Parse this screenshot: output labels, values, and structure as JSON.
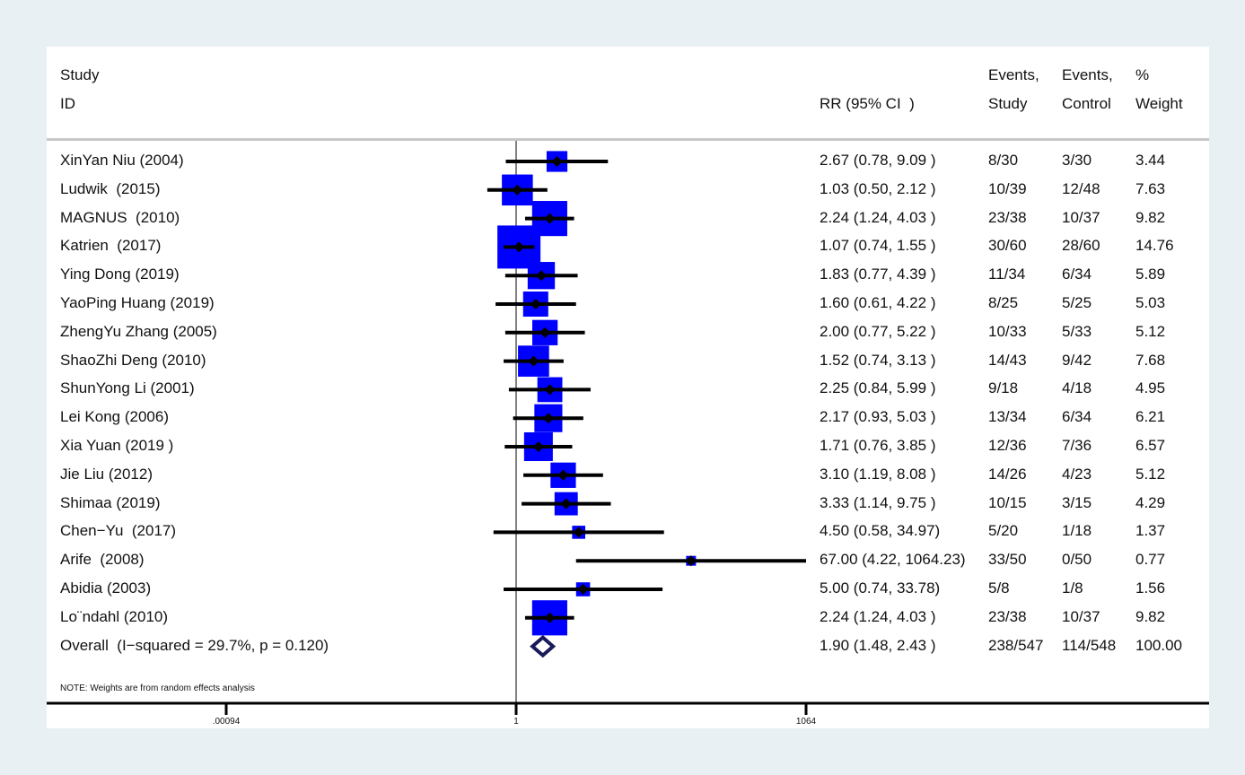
{
  "headers": {
    "study": "Study",
    "id": "ID",
    "rr": "RR (95% CI  )",
    "events1_top": "Events,",
    "events1_bottom": "Study",
    "events2_top": "Events,",
    "events2_bottom": "Control",
    "weight_top": "%",
    "weight_bottom": "Weight"
  },
  "note": "NOTE: Weights are from random effects analysis",
  "colors": {
    "box": "#0000ff",
    "line": "#000000",
    "diamond": "#1a1a5a",
    "nullline": "#808080",
    "background": "#e9f0f3"
  },
  "chart_data": {
    "type": "forest",
    "xscale": "log",
    "xlim": [
      0.00094,
      1064
    ],
    "null_value": 1,
    "xticks": [
      {
        "value": 0.00094,
        "label": ".00094"
      },
      {
        "value": 1,
        "label": "1"
      },
      {
        "value": 1064,
        "label": "1064"
      }
    ],
    "studies": [
      {
        "name": "XinYan Niu (2004)",
        "rr": 2.67,
        "lo": 0.78,
        "hi": 9.09,
        "ci_text": "2.67 (0.78, 9.09 )",
        "ev_study": "8/30",
        "ev_control": "3/30",
        "weight": 3.44,
        "weight_text": "3.44"
      },
      {
        "name": "Ludwik  (2015)",
        "rr": 1.03,
        "lo": 0.5,
        "hi": 2.12,
        "ci_text": "1.03 (0.50, 2.12 )",
        "ev_study": "10/39",
        "ev_control": "12/48",
        "weight": 7.63,
        "weight_text": "7.63"
      },
      {
        "name": "MAGNUS  (2010)",
        "rr": 2.24,
        "lo": 1.24,
        "hi": 4.03,
        "ci_text": "2.24 (1.24, 4.03 )",
        "ev_study": "23/38",
        "ev_control": "10/37",
        "weight": 9.82,
        "weight_text": "9.82"
      },
      {
        "name": "Katrien  (2017)",
        "rr": 1.07,
        "lo": 0.74,
        "hi": 1.55,
        "ci_text": "1.07 (0.74, 1.55 )",
        "ev_study": "30/60",
        "ev_control": "28/60",
        "weight": 14.76,
        "weight_text": "14.76"
      },
      {
        "name": "Ying Dong (2019)",
        "rr": 1.83,
        "lo": 0.77,
        "hi": 4.39,
        "ci_text": "1.83 (0.77, 4.39 )",
        "ev_study": "11/34",
        "ev_control": "6/34",
        "weight": 5.89,
        "weight_text": "5.89"
      },
      {
        "name": "YaoPing Huang (2019)",
        "rr": 1.6,
        "lo": 0.61,
        "hi": 4.22,
        "ci_text": "1.60 (0.61, 4.22 )",
        "ev_study": "8/25",
        "ev_control": "5/25",
        "weight": 5.03,
        "weight_text": "5.03"
      },
      {
        "name": "ZhengYu Zhang (2005)",
        "rr": 2.0,
        "lo": 0.77,
        "hi": 5.22,
        "ci_text": "2.00 (0.77, 5.22 )",
        "ev_study": "10/33",
        "ev_control": "5/33",
        "weight": 5.12,
        "weight_text": "5.12"
      },
      {
        "name": "ShaoZhi Deng (2010)",
        "rr": 1.52,
        "lo": 0.74,
        "hi": 3.13,
        "ci_text": "1.52 (0.74, 3.13 )",
        "ev_study": "14/43",
        "ev_control": "9/42",
        "weight": 7.68,
        "weight_text": "7.68"
      },
      {
        "name": "ShunYong Li (2001)",
        "rr": 2.25,
        "lo": 0.84,
        "hi": 5.99,
        "ci_text": "2.25 (0.84, 5.99 )",
        "ev_study": "9/18",
        "ev_control": "4/18",
        "weight": 4.95,
        "weight_text": "4.95"
      },
      {
        "name": "Lei Kong (2006)",
        "rr": 2.17,
        "lo": 0.93,
        "hi": 5.03,
        "ci_text": "2.17 (0.93, 5.03 )",
        "ev_study": "13/34",
        "ev_control": "6/34",
        "weight": 6.21,
        "weight_text": "6.21"
      },
      {
        "name": "Xia Yuan (2019 )",
        "rr": 1.71,
        "lo": 0.76,
        "hi": 3.85,
        "ci_text": "1.71 (0.76, 3.85 )",
        "ev_study": "12/36",
        "ev_control": "7/36",
        "weight": 6.57,
        "weight_text": "6.57"
      },
      {
        "name": "Jie Liu (2012)",
        "rr": 3.1,
        "lo": 1.19,
        "hi": 8.08,
        "ci_text": "3.10 (1.19, 8.08 )",
        "ev_study": "14/26",
        "ev_control": "4/23",
        "weight": 5.12,
        "weight_text": "5.12"
      },
      {
        "name": "Shimaa (2019)",
        "rr": 3.33,
        "lo": 1.14,
        "hi": 9.75,
        "ci_text": "3.33 (1.14, 9.75 )",
        "ev_study": "10/15",
        "ev_control": "3/15",
        "weight": 4.29,
        "weight_text": "4.29"
      },
      {
        "name": "Chen−Yu  (2017)",
        "rr": 4.5,
        "lo": 0.58,
        "hi": 34.97,
        "ci_text": "4.50 (0.58, 34.97)",
        "ev_study": "5/20",
        "ev_control": "1/18",
        "weight": 1.37,
        "weight_text": "1.37"
      },
      {
        "name": "Arife  (2008)",
        "rr": 67.0,
        "lo": 4.22,
        "hi": 1064.23,
        "ci_text": "67.00 (4.22, 1064.23)",
        "ev_study": "33/50",
        "ev_control": "0/50",
        "weight": 0.77,
        "weight_text": "0.77"
      },
      {
        "name": "Abidia (2003)",
        "rr": 5.0,
        "lo": 0.74,
        "hi": 33.78,
        "ci_text": "5.00 (0.74, 33.78)",
        "ev_study": "5/8",
        "ev_control": "1/8",
        "weight": 1.56,
        "weight_text": "1.56"
      },
      {
        "name": "Lo¨ndahl (2010)",
        "rr": 2.24,
        "lo": 1.24,
        "hi": 4.03,
        "ci_text": "2.24 (1.24, 4.03 )",
        "ev_study": "23/38",
        "ev_control": "10/37",
        "weight": 9.82,
        "weight_text": "9.82"
      }
    ],
    "overall": {
      "name": "Overall  (I−squared = 29.7%, p = 0.120)",
      "rr": 1.9,
      "lo": 1.48,
      "hi": 2.43,
      "ci_text": "1.90 (1.48, 2.43 )",
      "ev_study": "238/547",
      "ev_control": "114/548",
      "weight_text": "100.00"
    }
  }
}
